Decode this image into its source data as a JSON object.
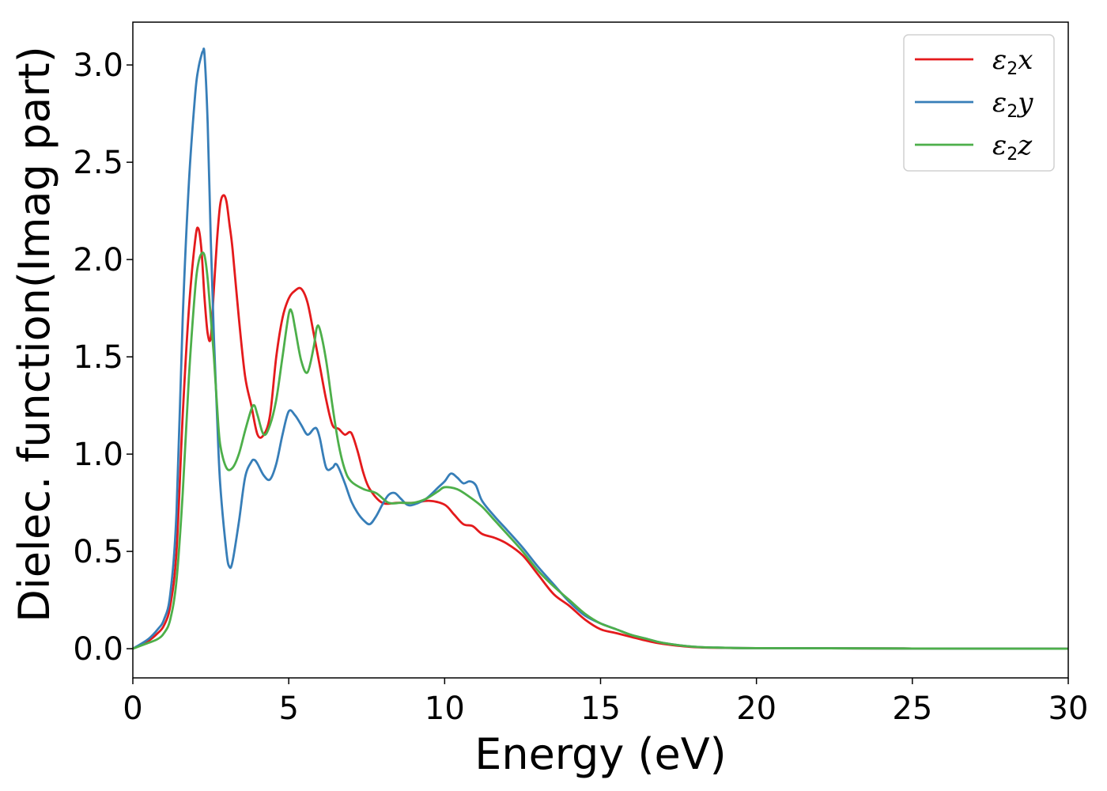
{
  "chart_data": {
    "type": "line",
    "title": "",
    "xlabel": "Energy (eV)",
    "ylabel": "Dielec. function(Imag part)",
    "xlim": [
      0,
      30
    ],
    "ylim": [
      -0.15,
      3.22
    ],
    "xticks": [
      0,
      5,
      10,
      15,
      20,
      25,
      30
    ],
    "yticks": [
      0.0,
      0.5,
      1.0,
      1.5,
      2.0,
      2.5,
      3.0
    ],
    "xtick_labels": [
      "0",
      "5",
      "10",
      "15",
      "20",
      "25",
      "30"
    ],
    "ytick_labels": [
      "0.0",
      "0.5",
      "1.0",
      "1.5",
      "2.0",
      "2.5",
      "3.0"
    ],
    "grid": false,
    "legend_position": "top-right",
    "series": [
      {
        "name": "ε2x",
        "name_base": "ε",
        "name_sub": "2",
        "name_var": "x",
        "color": "#e41a1c",
        "x": [
          0,
          0.5,
          0.8,
          1.0,
          1.2,
          1.4,
          1.6,
          1.8,
          2.0,
          2.1,
          2.2,
          2.3,
          2.4,
          2.5,
          2.6,
          2.7,
          2.8,
          2.9,
          3.0,
          3.1,
          3.2,
          3.4,
          3.6,
          3.8,
          4.0,
          4.2,
          4.4,
          4.6,
          4.8,
          5.0,
          5.2,
          5.4,
          5.6,
          5.8,
          6.0,
          6.2,
          6.4,
          6.6,
          6.8,
          7.0,
          7.2,
          7.4,
          7.6,
          8.0,
          8.5,
          9.0,
          9.5,
          10.0,
          10.3,
          10.6,
          10.9,
          11.2,
          11.6,
          12.0,
          12.5,
          13.0,
          13.5,
          14.0,
          14.5,
          15.0,
          15.5,
          16.0,
          16.5,
          17.0,
          18.0,
          19.0,
          20.0,
          25.0,
          30.0
        ],
        "values": [
          0,
          0.04,
          0.08,
          0.12,
          0.22,
          0.5,
          1.2,
          1.75,
          2.1,
          2.16,
          2.05,
          1.8,
          1.62,
          1.6,
          1.85,
          2.1,
          2.28,
          2.33,
          2.3,
          2.18,
          2.05,
          1.7,
          1.4,
          1.25,
          1.1,
          1.1,
          1.2,
          1.5,
          1.7,
          1.8,
          1.84,
          1.85,
          1.78,
          1.62,
          1.45,
          1.28,
          1.15,
          1.13,
          1.1,
          1.11,
          1.02,
          0.9,
          0.82,
          0.75,
          0.75,
          0.75,
          0.76,
          0.74,
          0.69,
          0.64,
          0.63,
          0.59,
          0.57,
          0.54,
          0.48,
          0.38,
          0.28,
          0.22,
          0.15,
          0.1,
          0.08,
          0.06,
          0.04,
          0.025,
          0.008,
          0.004,
          0.003,
          0.001,
          0.0
        ]
      },
      {
        "name": "ε2y",
        "name_base": "ε",
        "name_sub": "2",
        "name_var": "y",
        "color": "#377eb8",
        "x": [
          0,
          0.5,
          0.8,
          1.0,
          1.2,
          1.4,
          1.6,
          1.8,
          2.0,
          2.1,
          2.2,
          2.25,
          2.3,
          2.4,
          2.5,
          2.6,
          2.7,
          2.8,
          3.0,
          3.1,
          3.2,
          3.4,
          3.6,
          3.8,
          3.9,
          4.0,
          4.2,
          4.4,
          4.6,
          4.8,
          5.0,
          5.2,
          5.4,
          5.6,
          5.8,
          5.9,
          6.0,
          6.2,
          6.4,
          6.5,
          6.6,
          6.8,
          7.0,
          7.2,
          7.4,
          7.6,
          7.8,
          8.0,
          8.2,
          8.4,
          8.6,
          8.8,
          9.0,
          9.4,
          9.8,
          10.0,
          10.2,
          10.4,
          10.6,
          10.8,
          11.0,
          11.2,
          11.6,
          12.0,
          12.5,
          13.0,
          13.5,
          14.0,
          14.5,
          15.0,
          15.5,
          16.0,
          16.5,
          17.0,
          18.0,
          19.0,
          20.0,
          25.0,
          30.0
        ],
        "values": [
          0,
          0.05,
          0.1,
          0.15,
          0.28,
          0.7,
          1.7,
          2.4,
          2.85,
          2.98,
          3.05,
          3.07,
          3.05,
          2.7,
          2.1,
          1.6,
          1.2,
          0.85,
          0.5,
          0.42,
          0.45,
          0.65,
          0.88,
          0.96,
          0.97,
          0.95,
          0.89,
          0.87,
          0.95,
          1.1,
          1.22,
          1.2,
          1.15,
          1.1,
          1.13,
          1.13,
          1.08,
          0.93,
          0.93,
          0.95,
          0.93,
          0.85,
          0.76,
          0.7,
          0.66,
          0.64,
          0.68,
          0.74,
          0.79,
          0.8,
          0.77,
          0.74,
          0.74,
          0.77,
          0.83,
          0.86,
          0.9,
          0.88,
          0.85,
          0.86,
          0.84,
          0.76,
          0.68,
          0.61,
          0.52,
          0.42,
          0.33,
          0.24,
          0.17,
          0.13,
          0.1,
          0.07,
          0.05,
          0.03,
          0.01,
          0.005,
          0.003,
          0.001,
          0.0
        ]
      },
      {
        "name": "ε2z",
        "name_base": "ε",
        "name_sub": "2",
        "name_var": "z",
        "color": "#4daf4a",
        "x": [
          0,
          0.5,
          0.8,
          1.0,
          1.2,
          1.4,
          1.6,
          1.8,
          2.0,
          2.1,
          2.2,
          2.3,
          2.4,
          2.5,
          2.6,
          2.7,
          2.8,
          3.0,
          3.2,
          3.4,
          3.6,
          3.8,
          3.9,
          4.0,
          4.2,
          4.4,
          4.6,
          4.8,
          5.0,
          5.1,
          5.2,
          5.4,
          5.6,
          5.8,
          5.9,
          6.0,
          6.2,
          6.4,
          6.6,
          6.8,
          7.0,
          7.4,
          7.8,
          8.2,
          8.6,
          9.0,
          9.4,
          9.8,
          10.0,
          10.4,
          10.8,
          11.2,
          11.6,
          12.0,
          12.5,
          13.0,
          13.5,
          14.0,
          14.5,
          15.0,
          15.5,
          16.0,
          16.5,
          17.0,
          18.0,
          19.0,
          20.0,
          25.0,
          30.0
        ],
        "values": [
          0,
          0.03,
          0.05,
          0.08,
          0.15,
          0.35,
          0.8,
          1.4,
          1.85,
          1.98,
          2.03,
          2.02,
          1.9,
          1.7,
          1.5,
          1.25,
          1.05,
          0.93,
          0.93,
          1.0,
          1.12,
          1.23,
          1.25,
          1.2,
          1.1,
          1.15,
          1.28,
          1.5,
          1.72,
          1.73,
          1.65,
          1.48,
          1.42,
          1.55,
          1.65,
          1.64,
          1.48,
          1.25,
          1.05,
          0.92,
          0.86,
          0.82,
          0.8,
          0.75,
          0.75,
          0.75,
          0.77,
          0.81,
          0.83,
          0.82,
          0.78,
          0.73,
          0.66,
          0.59,
          0.5,
          0.4,
          0.32,
          0.25,
          0.18,
          0.13,
          0.1,
          0.07,
          0.05,
          0.03,
          0.01,
          0.005,
          0.003,
          0.001,
          0.0
        ]
      }
    ]
  }
}
